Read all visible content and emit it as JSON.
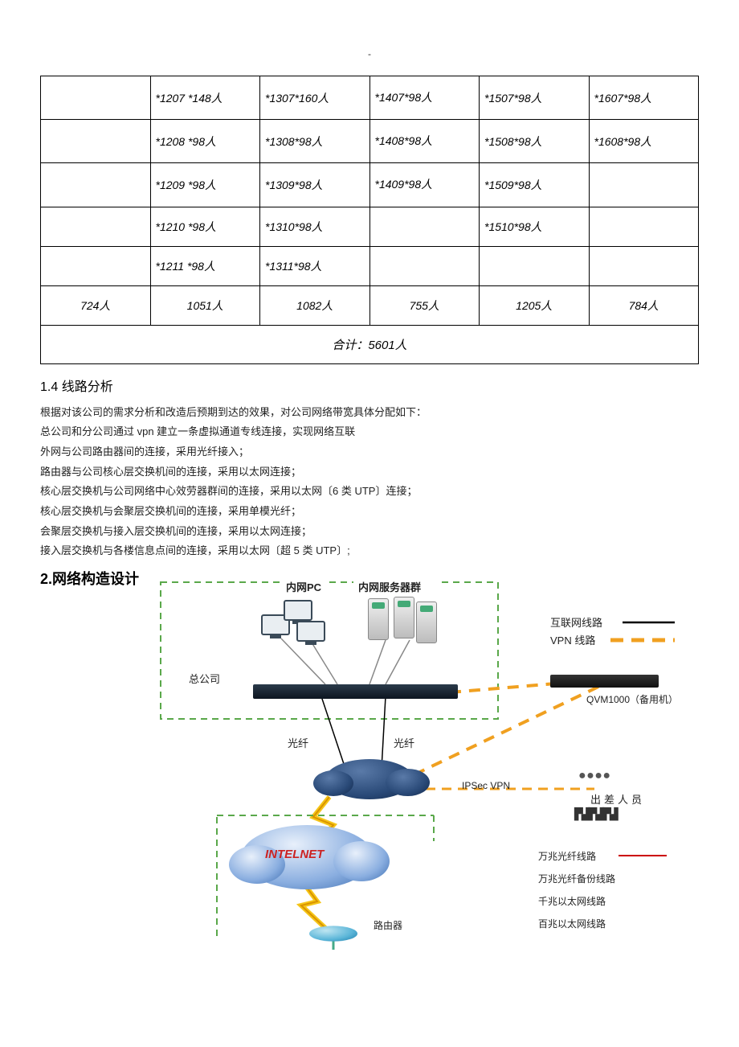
{
  "topDash": "-",
  "table": {
    "rows": [
      [
        "",
        "*1207 *148人",
        "*1307*160人",
        "*1407*98人",
        "*1507*98人",
        "*1607*98人"
      ],
      [
        "",
        "*1208 *98人",
        "*1308*98人",
        "*1408*98人",
        "*1508*98人",
        "*1608*98人"
      ],
      [
        "",
        "*1209 *98人",
        "*1309*98人",
        "*1409*98人",
        "*1509*98人",
        ""
      ],
      [
        "",
        "*1210 *98人",
        "*1310*98人",
        "",
        "*1510*98人",
        ""
      ],
      [
        "",
        "*1211 *98人",
        "*1311*98人",
        "",
        "",
        ""
      ]
    ],
    "sums": [
      "724人",
      "1051人",
      "1082人",
      "755人",
      "1205人",
      "784人"
    ],
    "total": "合计：5601人"
  },
  "section14": "1.4  线路分析",
  "paragraphs": [
    "根据对该公司的需求分析和改造后预期到达的效果，对公司网络带宽具体分配如下：",
    "总公司和分公司通过 vpn 建立一条虚拟通道专线连接，实现网络互联",
    "外网与公司路由器间的连接，采用光纤接入；",
    "路由器与公司核心层交换机间的连接，采用以太网连接；",
    "核心层交换机与公司网络中心效劳器群间的连接，采用以太网〔6 类 UTP〕连接；",
    "核心层交换机与会聚层交换机间的连接，采用单模光纤；",
    "会聚层交换机与接入层交换机间的连接，采用以太网连接；",
    "接入层交换机与各楼信息点间的连接，采用以太网〔超 5 类 UTP〕;"
  ],
  "section2": "2.网络构造设计",
  "diagram": {
    "labels": {
      "innerPC": "内网PC",
      "innerServers": "内网服务器群",
      "hq": "总公司",
      "fiber1": "光纤",
      "fiber2": "光纤",
      "ipsec": "IPSec VPN",
      "internet": "INTELNET",
      "router": "路由器",
      "qvm": "QVM1000（备用机）",
      "travel": "出差人员"
    },
    "legend": {
      "internetLine": "互联网线路",
      "vpnLine": "VPN 线路",
      "wanFiber": "万兆光纤线路",
      "wanFiberBak": "万兆光纤备份线路",
      "gigE": "千兆以太网线路",
      "fastE": "百兆以太网线路"
    },
    "colors": {
      "dashedGreen": "#5aa84a",
      "dashedOrange": "#f0a020",
      "solidBlack": "#000000",
      "solidRed": "#c00000",
      "cloudBlue": "#3c6db0",
      "darkCloud": "#12284a"
    },
    "box": {
      "stroke": "#7aa5d8",
      "dash": "6,4"
    }
  }
}
